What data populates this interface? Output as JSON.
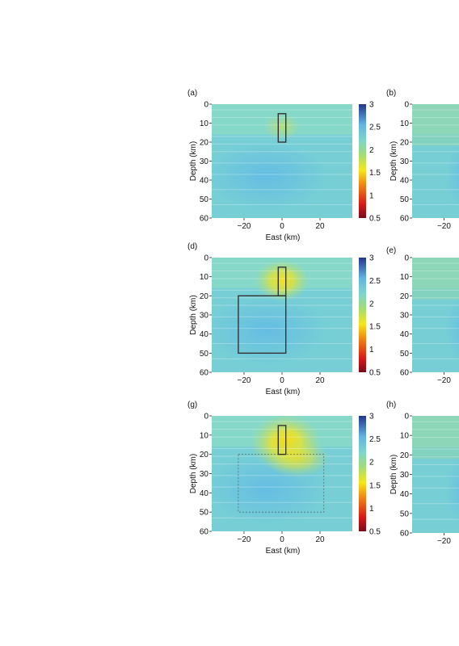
{
  "figure": {
    "panels": [
      {
        "label": "(a)",
        "ylabel": "Depth (km)",
        "xlabel": "East (km)"
      },
      {
        "label": "(b)",
        "ylabel": "Depth (km)",
        "xlabel": ""
      },
      {
        "label": "(d)",
        "ylabel": "Depth (km)",
        "xlabel": "East (km)"
      },
      {
        "label": "(e)",
        "ylabel": "",
        "xlabel": ""
      },
      {
        "label": "(g)",
        "ylabel": "Depth (km)",
        "xlabel": "East (km)"
      },
      {
        "label": "(h)",
        "ylabel": "Depth (km)",
        "xlabel": ""
      }
    ]
  },
  "colors": {
    "background": "#86d8c8",
    "deep_blue": "#6cc8e0",
    "anomaly_yellow": "#f2e020",
    "anomaly_green": "#b8e070",
    "outline": "#333333"
  },
  "chart_data": [
    {
      "type": "heatmap",
      "label": "(a)",
      "xlabel": "East (km)",
      "ylabel": "Depth (km)",
      "x_ticks": [
        -20,
        0,
        20
      ],
      "x_tick_labels": [
        "−20",
        "0",
        "20"
      ],
      "y_ticks": [
        0,
        10,
        20,
        30,
        40,
        50,
        60
      ],
      "xlim": [
        -37,
        37
      ],
      "ylim": [
        60,
        0
      ],
      "colorbar": {
        "ticks": [
          "0.5",
          "1",
          "1.5",
          "2",
          "2.5",
          "3"
        ],
        "range": [
          0.5,
          3
        ],
        "colors": [
          "#8a0c1c",
          "#e81a1a",
          "#f5e61a",
          "#84d8c0",
          "#6ab8e0",
          "#2a3a98"
        ]
      },
      "anomaly": {
        "center_x_km": 0,
        "center_depth_km": 12,
        "value": 1.9,
        "strength": "weak"
      },
      "model_outlines": [
        {
          "x": [
            -2,
            2
          ],
          "depth": [
            5,
            20
          ]
        }
      ]
    },
    {
      "type": "heatmap",
      "label": "(b)",
      "ylabel": "Depth (km)",
      "x_ticks": [
        -20
      ],
      "x_tick_labels": [
        "−20"
      ],
      "y_ticks": [
        0,
        10,
        20,
        30,
        40,
        50,
        60
      ],
      "ylim": [
        60,
        0
      ]
    },
    {
      "type": "heatmap",
      "label": "(d)",
      "xlabel": "East (km)",
      "ylabel": "Depth (km)",
      "x_ticks": [
        -20,
        0,
        20
      ],
      "x_tick_labels": [
        "−20",
        "0",
        "20"
      ],
      "y_ticks": [
        0,
        10,
        20,
        30,
        40,
        50,
        60
      ],
      "xlim": [
        -37,
        37
      ],
      "ylim": [
        60,
        0
      ],
      "colorbar": {
        "ticks": [
          "0.5",
          "1",
          "1.5",
          "2",
          "2.5",
          "3"
        ],
        "range": [
          0.5,
          3
        ]
      },
      "anomaly": {
        "center_x_km": 0,
        "center_depth_km": 12,
        "value": 1.5,
        "strength": "moderate"
      },
      "model_outlines": [
        {
          "x": [
            -2,
            2
          ],
          "depth": [
            5,
            20
          ]
        },
        {
          "x": [
            -23,
            2
          ],
          "depth": [
            20,
            50
          ]
        }
      ]
    },
    {
      "type": "heatmap",
      "label": "(e)",
      "x_ticks": [
        -20
      ],
      "x_tick_labels": [
        "−20"
      ],
      "y_ticks": [
        0,
        10,
        20,
        30,
        40,
        50,
        60
      ],
      "ylim": [
        60,
        0
      ]
    },
    {
      "type": "heatmap",
      "label": "(g)",
      "xlabel": "East (km)",
      "ylabel": "Depth (km)",
      "x_ticks": [
        -20,
        0,
        20
      ],
      "x_tick_labels": [
        "−20",
        "0",
        "20"
      ],
      "y_ticks": [
        0,
        10,
        20,
        30,
        40,
        50,
        60
      ],
      "xlim": [
        -37,
        37
      ],
      "ylim": [
        60,
        0
      ],
      "colorbar": {
        "ticks": [
          "0.5",
          "1",
          "1.5",
          "2",
          "2.5",
          "3"
        ],
        "range": [
          0.5,
          3
        ]
      },
      "anomaly": {
        "center_x_km": 2,
        "center_depth_km": 14,
        "value": 1.4,
        "strength": "strong"
      },
      "model_outlines": [
        {
          "x": [
            -2,
            2
          ],
          "depth": [
            5,
            20
          ]
        },
        {
          "x": [
            -23,
            22
          ],
          "depth": [
            20,
            50
          ],
          "style": "dashed"
        }
      ]
    },
    {
      "type": "heatmap",
      "label": "(h)",
      "ylabel": "Depth (km)",
      "x_ticks": [
        -20
      ],
      "x_tick_labels": [
        "−20"
      ],
      "y_ticks": [
        0,
        10,
        20,
        30,
        40,
        50,
        60
      ],
      "ylim": [
        60,
        0
      ]
    }
  ]
}
